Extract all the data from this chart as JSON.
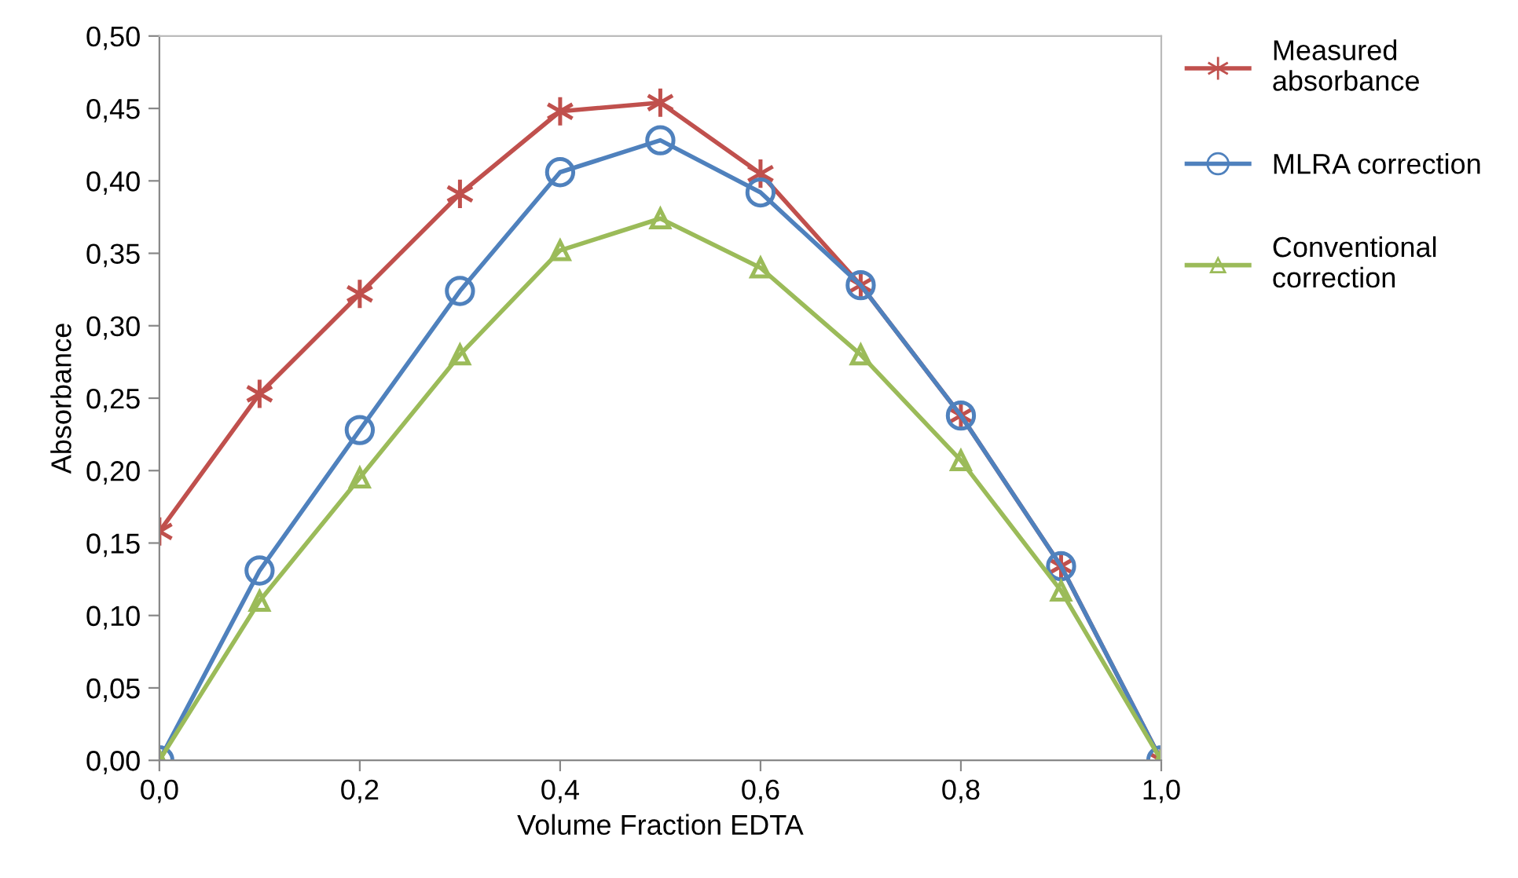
{
  "chart_data": {
    "type": "line",
    "xlabel": "Volume Fraction EDTA",
    "ylabel": "Absorbance",
    "x": [
      0.0,
      0.1,
      0.2,
      0.3,
      0.4,
      0.5,
      0.6,
      0.7,
      0.8,
      0.9,
      1.0
    ],
    "series": [
      {
        "name": "Measured\nabsorbance",
        "color": "#c0504d",
        "marker": "cross",
        "values": [
          0.158,
          0.253,
          0.322,
          0.391,
          0.448,
          0.454,
          0.405,
          0.328,
          0.238,
          0.134,
          0.0
        ]
      },
      {
        "name": "MLRA correction",
        "color": "#4f81bd",
        "marker": "circle",
        "values": [
          0.0,
          0.131,
          0.228,
          0.324,
          0.406,
          0.428,
          0.392,
          0.328,
          0.238,
          0.134,
          0.0
        ]
      },
      {
        "name": "Conventional\ncorrection",
        "color": "#9bbb59",
        "marker": "triangle",
        "values": [
          0.0,
          0.11,
          0.195,
          0.28,
          0.352,
          0.374,
          0.34,
          0.28,
          0.207,
          0.117,
          0.0
        ]
      }
    ],
    "xlim": [
      0.0,
      1.0
    ],
    "xticks": [
      {
        "value": 0.0,
        "label": "0,0"
      },
      {
        "value": 0.2,
        "label": "0,2"
      },
      {
        "value": 0.4,
        "label": "0,4"
      },
      {
        "value": 0.6,
        "label": "0,6"
      },
      {
        "value": 0.8,
        "label": "0,8"
      },
      {
        "value": 1.0,
        "label": "1,0"
      }
    ],
    "ylim": [
      0.0,
      0.5
    ],
    "yticks": [
      {
        "value": 0.0,
        "label": "0,00"
      },
      {
        "value": 0.05,
        "label": "0,05"
      },
      {
        "value": 0.1,
        "label": "0,10"
      },
      {
        "value": 0.15,
        "label": "0,15"
      },
      {
        "value": 0.2,
        "label": "0,20"
      },
      {
        "value": 0.25,
        "label": "0,25"
      },
      {
        "value": 0.3,
        "label": "0,30"
      },
      {
        "value": 0.35,
        "label": "0,35"
      },
      {
        "value": 0.4,
        "label": "0,40"
      },
      {
        "value": 0.45,
        "label": "0,45"
      },
      {
        "value": 0.5,
        "label": "0,50"
      }
    ],
    "grid": false,
    "legend": "right",
    "line_style": "solid"
  }
}
